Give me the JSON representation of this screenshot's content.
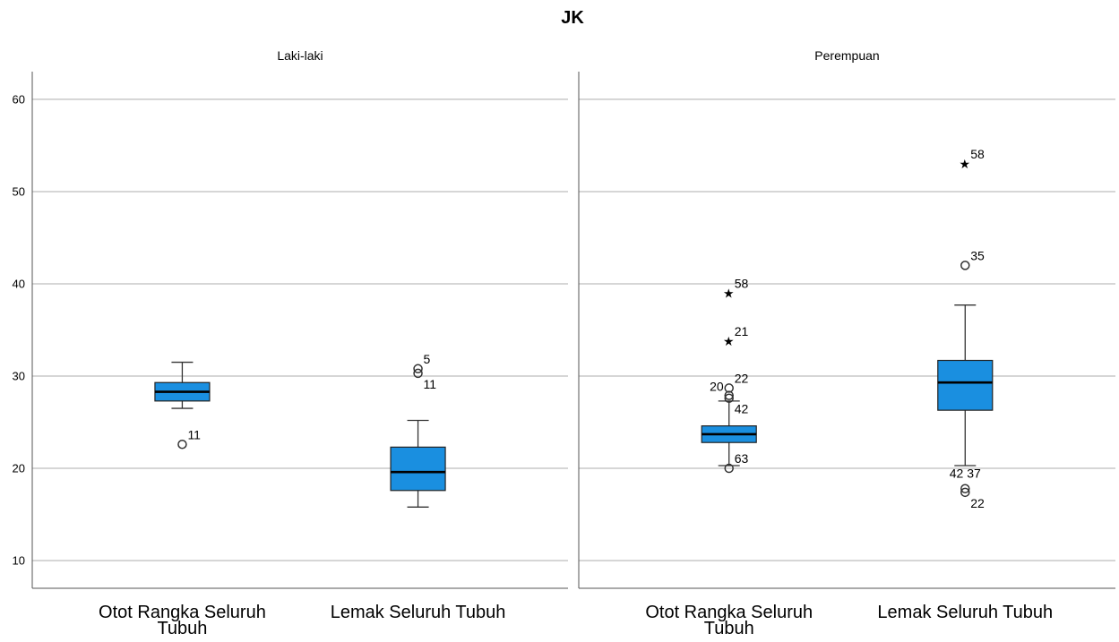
{
  "chart_data": {
    "type": "boxplot",
    "title": "JK",
    "ylim": [
      7,
      63
    ],
    "yticks": [
      10,
      20,
      30,
      40,
      50,
      60
    ],
    "grid": true,
    "box_color": "#1a8fe0",
    "categories": [
      "Otot Rangka  Seluruh Tubuh",
      "Lemak Seluruh Tubuh"
    ],
    "category_lines": [
      [
        "Otot Rangka  Seluruh",
        "Tubuh"
      ],
      [
        "Lemak Seluruh Tubuh"
      ]
    ],
    "panels": [
      {
        "name": "Laki-laki",
        "boxes": [
          {
            "category": "Otot Rangka  Seluruh Tubuh",
            "whisker_low": 26.5,
            "q1": 27.3,
            "median": 28.3,
            "q3": 29.3,
            "whisker_high": 31.5,
            "outliers": [
              {
                "value": 22.6,
                "marker": "circle",
                "label": "11",
                "label_pos": "right-above"
              }
            ]
          },
          {
            "category": "Lemak Seluruh Tubuh",
            "whisker_low": 15.8,
            "q1": 17.6,
            "median": 19.6,
            "q3": 22.3,
            "whisker_high": 25.2,
            "outliers": [
              {
                "value": 30.8,
                "marker": "circle",
                "label": "5",
                "label_pos": "right-above"
              },
              {
                "value": 30.3,
                "marker": "circle",
                "label": "11",
                "label_pos": "right-below"
              }
            ]
          }
        ]
      },
      {
        "name": "Perempuan",
        "boxes": [
          {
            "category": "Otot Rangka  Seluruh Tubuh",
            "whisker_low": 20.3,
            "q1": 22.8,
            "median": 23.7,
            "q3": 24.6,
            "whisker_high": 27.3,
            "outliers": [
              {
                "value": 39.0,
                "marker": "star",
                "label": "58",
                "label_pos": "right-above"
              },
              {
                "value": 33.8,
                "marker": "star",
                "label": "21",
                "label_pos": "right-above"
              },
              {
                "value": 28.7,
                "marker": "circle",
                "label": "22",
                "label_pos": "right-above"
              },
              {
                "value": 27.9,
                "marker": "circle",
                "label": "20",
                "label_pos": "left-above"
              },
              {
                "value": 27.6,
                "marker": "circle",
                "label": "42",
                "label_pos": "right-below"
              },
              {
                "value": 20.0,
                "marker": "circle",
                "label": "63",
                "label_pos": "right-above"
              }
            ]
          },
          {
            "category": "Lemak Seluruh Tubuh",
            "whisker_low": 20.3,
            "q1": 26.3,
            "median": 29.3,
            "q3": 31.7,
            "whisker_high": 37.7,
            "outliers": [
              {
                "value": 53.0,
                "marker": "star",
                "label": "58",
                "label_pos": "right-above"
              },
              {
                "value": 42.0,
                "marker": "circle",
                "label": "35",
                "label_pos": "right-above"
              },
              {
                "value": 17.8,
                "marker": "circle",
                "label": "42 37",
                "label_pos": "center-above"
              },
              {
                "value": 17.4,
                "marker": "circle",
                "label": "22",
                "label_pos": "right-below"
              }
            ]
          }
        ]
      }
    ]
  }
}
